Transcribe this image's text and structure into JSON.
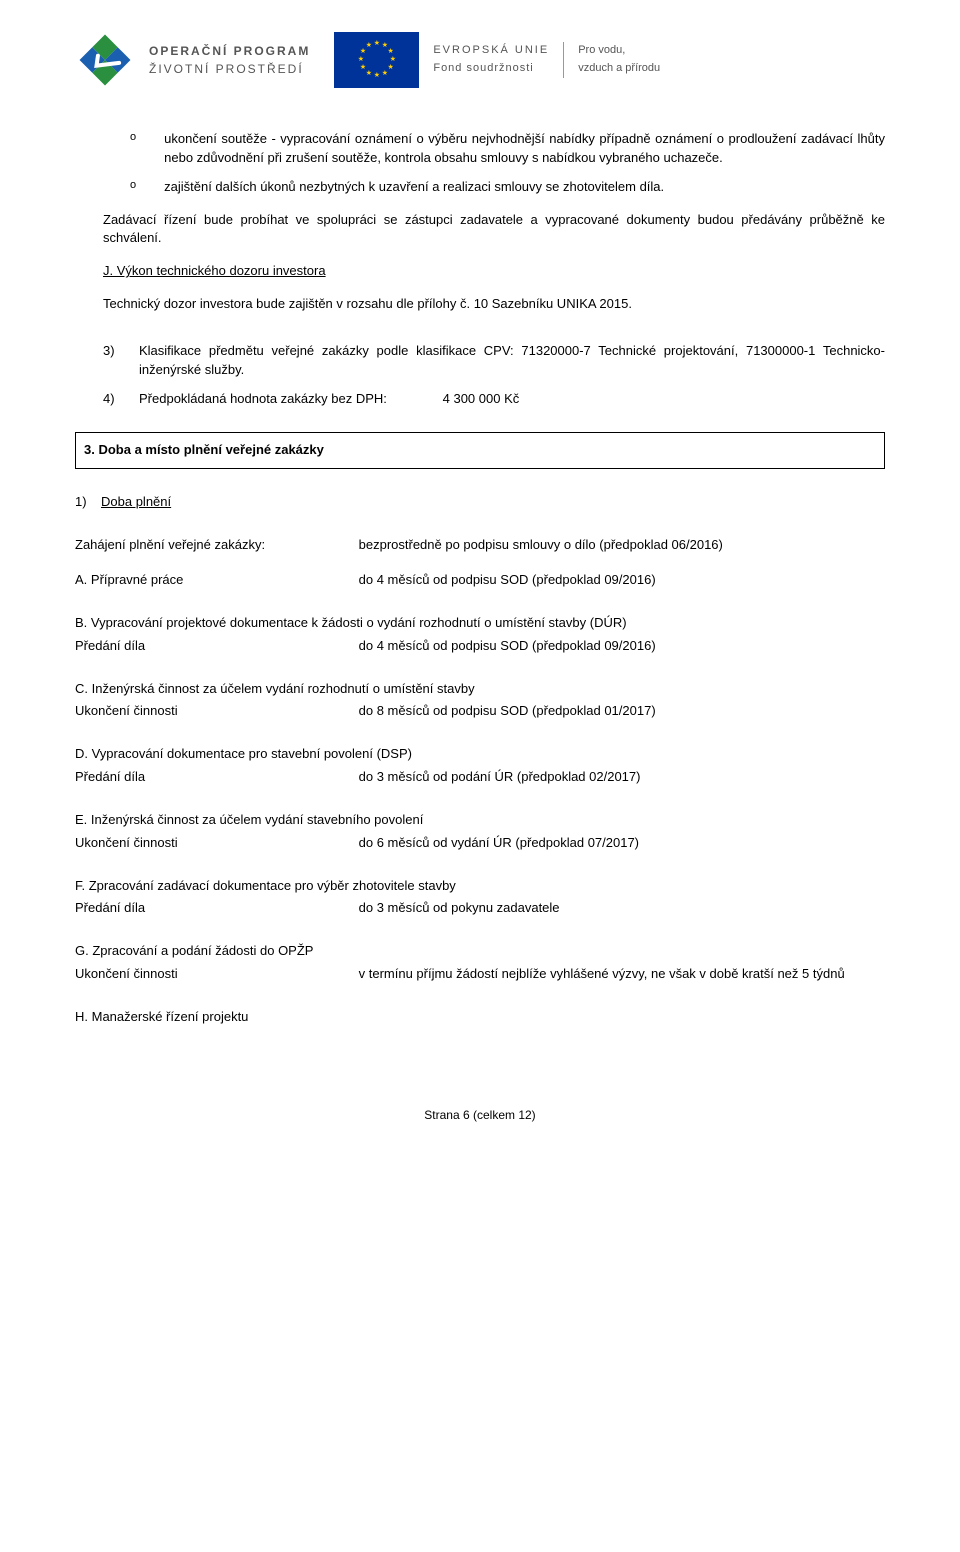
{
  "header": {
    "op_line1": "OPERAČNÍ PROGRAM",
    "op_line2": "ŽIVOTNÍ PROSTŘEDÍ",
    "eu_line1": "EVROPSKÁ UNIE",
    "eu_line2": "Fond soudržnosti",
    "tag_line1": "Pro vodu,",
    "tag_line2": "vzduch a přírodu",
    "colors": {
      "eu_flag_bg": "#003399",
      "eu_star": "#ffcc00",
      "op_green": "#2a8f3f",
      "op_blue": "#1b5fb0"
    }
  },
  "bullets": [
    "ukončení soutěže - vypracování oznámení o výběru nejvhodnější nabídky případně oznámení o prodloužení zadávací lhůty nebo zdůvodnění při zrušení soutěže, kontrola obsahu smlouvy s nabídkou vybraného uchazeče.",
    "zajištění dalších úkonů nezbytných k uzavření a realizaci smlouvy se zhotovitelem díla."
  ],
  "p_after_bullets": "Zadávací řízení bude probíhat ve spolupráci se zástupci zadavatele a vypracované dokumenty budou předávány průběžně ke schválení.",
  "section_j_title": "J. Výkon technického dozoru investora",
  "section_j_body": "Technický dozor investora bude zajištěn v rozsahu dle přílohy č. 10 Sazebníku UNIKA 2015.",
  "num3_label": "3)",
  "num3_text": "Klasifikace předmětu veřejné zakázky podle klasifikace CPV: 71320000-7 Technické projektování, 71300000-1 Technicko-inženýrské služby.",
  "num4_label": "4)",
  "num4_text_a": "Předpokládaná hodnota zakázky bez DPH:",
  "num4_text_b": "4 300 000 Kč",
  "box_title": "3. Doba a místo plnění veřejné zakázky",
  "doba_num": "1)",
  "doba_title": "Doba plnění",
  "rows_top": [
    {
      "label": "Zahájení plnění veřejné zakázky:",
      "value": "bezprostředně po podpisu smlouvy o dílo (předpoklad 06/2016)"
    },
    {
      "label": "A. Přípravné práce",
      "value": "do 4 měsíců od podpisu SOD (předpoklad 09/2016)"
    }
  ],
  "block_b_title": "B. Vypracování projektové dokumentace k žádosti o vydání rozhodnutí o umístění stavby (DÚR)",
  "block_b_row": {
    "label": "Předání díla",
    "value": "do 4 měsíců od podpisu SOD (předpoklad 09/2016)"
  },
  "block_c_title": "C. Inženýrská činnost za účelem vydání rozhodnutí o umístění stavby",
  "block_c_row": {
    "label": "Ukončení činnosti",
    "value": "do 8 měsíců od podpisu SOD (předpoklad 01/2017)"
  },
  "block_d_title": "D. Vypracování dokumentace pro stavební povolení (DSP)",
  "block_d_row": {
    "label": "Předání díla",
    "value": "do 3 měsíců od podání ÚR (předpoklad 02/2017)"
  },
  "block_e_title": "E. Inženýrská činnost za účelem vydání stavebního povolení",
  "block_e_row": {
    "label": "Ukončení činnosti",
    "value": "do 6 měsíců od vydání ÚR (předpoklad 07/2017)"
  },
  "block_f_title": "F. Zpracování zadávací dokumentace pro výběr zhotovitele stavby",
  "block_f_row": {
    "label": "Předání díla",
    "value": "do 3 měsíců od pokynu zadavatele"
  },
  "block_g_title": "G. Zpracování a podání žádosti do OPŽP",
  "block_g_row": {
    "label": "Ukončení činnosti",
    "value": "v termínu příjmu žádostí nejblíže vyhlášené výzvy, ne však v době kratší než 5 týdnů"
  },
  "block_h_title": "H. Manažerské řízení projektu",
  "footer": "Strana 6 (celkem 12)"
}
